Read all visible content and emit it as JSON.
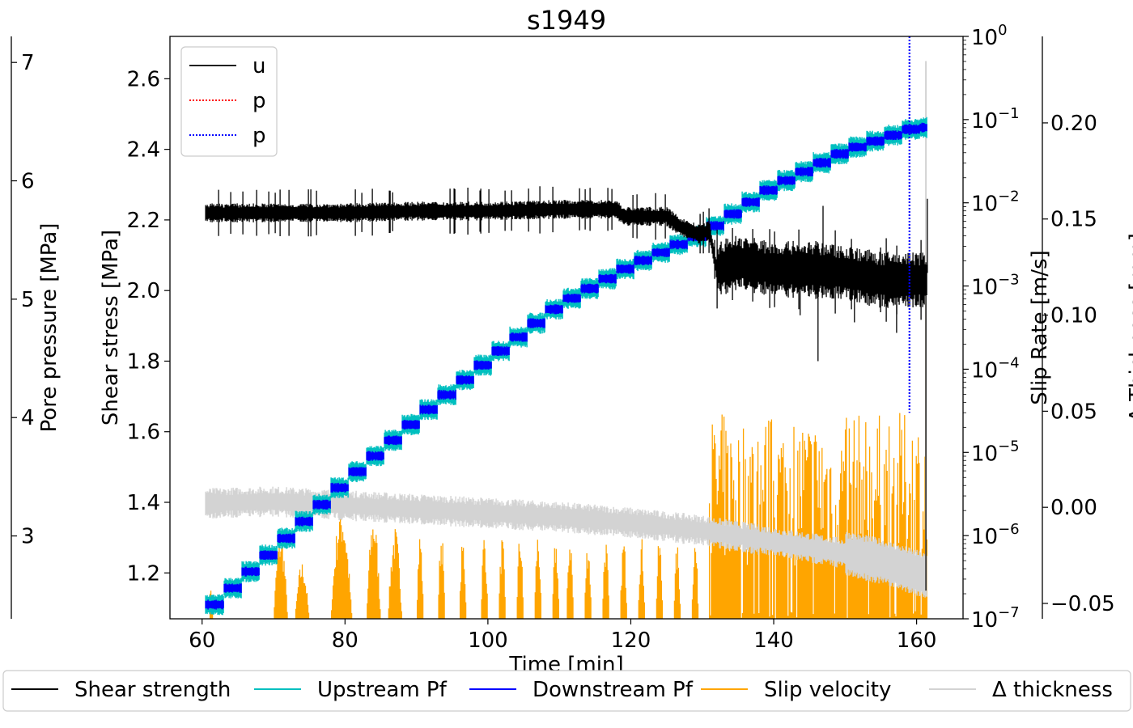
{
  "chart_data": {
    "type": "line",
    "title": "s1949",
    "xlabel": "Time [min]",
    "xlim": [
      55.5,
      166.5
    ],
    "x_ticks": [
      60,
      80,
      100,
      120,
      140,
      160
    ],
    "axes": {
      "shear": {
        "label": "Shear stress [MPa]",
        "position": "left",
        "lim": [
          1.07,
          2.72
        ],
        "ticks": [
          "1.2",
          "1.4",
          "1.6",
          "1.8",
          "2.0",
          "2.2",
          "2.4",
          "2.6"
        ]
      },
      "pore": {
        "label": "Pore pressure [MPa]",
        "position": "left-offset",
        "lim": [
          2.3,
          7.22
        ],
        "ticks": [
          "3",
          "4",
          "5",
          "6",
          "7"
        ]
      },
      "slip": {
        "label": "Slip Rate [m/s]",
        "position": "right",
        "scale": "log",
        "lim": [
          1e-07,
          1
        ],
        "ticks": [
          {
            "value": 1,
            "base": "10",
            "exp": "0"
          },
          {
            "value": 0.1,
            "base": "10",
            "exp": "−1"
          },
          {
            "value": 0.01,
            "base": "10",
            "exp": "−2"
          },
          {
            "value": 0.001,
            "base": "10",
            "exp": "−3"
          },
          {
            "value": 0.0001,
            "base": "10",
            "exp": "−4"
          },
          {
            "value": 1e-05,
            "base": "10",
            "exp": "−5"
          },
          {
            "value": 1e-06,
            "base": "10",
            "exp": "−6"
          },
          {
            "value": 1e-07,
            "base": "10",
            "exp": "−7"
          }
        ]
      },
      "thickness": {
        "label": "Δ Thickness [mm]",
        "position": "right-offset",
        "lim": [
          -0.058,
          0.245
        ],
        "ticks": [
          {
            "value": 0.2,
            "text": "0.20"
          },
          {
            "value": 0.15,
            "text": "0.15"
          },
          {
            "value": 0.1,
            "text": "0.10"
          },
          {
            "value": 0.05,
            "text": "0.05"
          },
          {
            "value": 0.0,
            "text": "0.00"
          },
          {
            "value": -0.05,
            "text": "−0.05"
          }
        ]
      }
    },
    "inner_legend": [
      {
        "label": "u",
        "color": "#000000",
        "style": "solid"
      },
      {
        "label": "p",
        "color": "#ff0000",
        "style": "dotted"
      },
      {
        "label": "p",
        "color": "#0000ff",
        "style": "dotted"
      }
    ],
    "series": [
      {
        "name": "Shear strength",
        "axis": "shear",
        "color": "#000000",
        "x": [
          60.5,
          70,
          80,
          90,
          100,
          110,
          118,
          119,
          125,
          127,
          129.5,
          131,
          132,
          135,
          140,
          145,
          150,
          155,
          160,
          161.5
        ],
        "y": [
          2.22,
          2.22,
          2.22,
          2.225,
          2.225,
          2.23,
          2.23,
          2.21,
          2.21,
          2.18,
          2.16,
          2.17,
          2.06,
          2.08,
          2.06,
          2.06,
          2.05,
          2.03,
          2.03,
          2.03
        ]
      },
      {
        "name": "Upstream Pf",
        "axis": "pore",
        "color": "#00bfbf",
        "x": [
          60.5,
          70,
          80,
          90,
          100,
          110,
          120,
          130,
          140,
          150,
          160,
          161.5
        ],
        "y": [
          2.35,
          2.88,
          3.45,
          3.98,
          4.48,
          4.95,
          5.28,
          5.55,
          5.95,
          6.25,
          6.45,
          6.45
        ]
      },
      {
        "name": "Downstream Pf",
        "axis": "pore",
        "color": "#0000ff",
        "x": [
          60.5,
          70,
          80,
          90,
          100,
          110,
          120,
          130,
          140,
          150,
          160,
          161.5
        ],
        "y": [
          2.35,
          2.88,
          3.45,
          3.98,
          4.48,
          4.95,
          5.28,
          5.55,
          5.95,
          6.25,
          6.45,
          6.45
        ]
      },
      {
        "name": "Slip velocity",
        "axis": "slip",
        "color": "#ffa500",
        "baseline": 1e-07,
        "bursts": [
          {
            "x0": 61,
            "x1": 61.5,
            "peak": 3e-07
          },
          {
            "x0": 70,
            "x1": 72,
            "peak": 1.2e-06
          },
          {
            "x0": 73,
            "x1": 75,
            "peak": 5e-07
          },
          {
            "x0": 78,
            "x1": 81,
            "peak": 2.5e-06
          },
          {
            "x0": 83,
            "x1": 85,
            "peak": 2e-06
          },
          {
            "x0": 86,
            "x1": 88,
            "peak": 1.3e-06
          },
          {
            "x0": 90,
            "x1": 91,
            "peak": 1.2e-06
          },
          {
            "x0": 93,
            "x1": 94,
            "peak": 1.3e-06
          },
          {
            "x0": 96,
            "x1": 97,
            "peak": 1e-06
          },
          {
            "x0": 99,
            "x1": 100,
            "peak": 1.2e-06
          },
          {
            "x0": 101.5,
            "x1": 102.5,
            "peak": 1e-06
          },
          {
            "x0": 104,
            "x1": 105,
            "peak": 1.2e-06
          },
          {
            "x0": 106.5,
            "x1": 107.5,
            "peak": 1.2e-06
          },
          {
            "x0": 109,
            "x1": 110,
            "peak": 1e-06
          },
          {
            "x0": 111,
            "x1": 112,
            "peak": 1.2e-06
          },
          {
            "x0": 113.5,
            "x1": 114.5,
            "peak": 1e-06
          },
          {
            "x0": 116,
            "x1": 117,
            "peak": 1e-06
          },
          {
            "x0": 118.5,
            "x1": 119.5,
            "peak": 1e-06
          },
          {
            "x0": 121,
            "x1": 122,
            "peak": 1e-06
          },
          {
            "x0": 123.5,
            "x1": 124.5,
            "peak": 1e-06
          },
          {
            "x0": 126,
            "x1": 127,
            "peak": 8e-07
          },
          {
            "x0": 128.5,
            "x1": 129.5,
            "peak": 1e-06
          },
          {
            "x0": 131,
            "x1": 161.5,
            "peak": 3e-05
          }
        ]
      },
      {
        "name": "Δ thickness",
        "axis": "thickness",
        "color": "#d3d3d3",
        "x": [
          60.5,
          70,
          80,
          90,
          100,
          110,
          120,
          130,
          140,
          150,
          155,
          160,
          161.5
        ],
        "y": [
          0.002,
          0.003,
          0.001,
          -0.001,
          -0.003,
          -0.005,
          -0.008,
          -0.012,
          -0.018,
          -0.024,
          -0.028,
          -0.034,
          -0.036
        ]
      }
    ],
    "events": [
      {
        "axis": "slip",
        "x": 159,
        "color": "#0000ff",
        "y_top": 1,
        "y_bottom": 3e-05
      }
    ],
    "bottom_legend": [
      "Shear strength",
      "Upstream Pf",
      "Downstream Pf",
      "Slip velocity",
      "Δ thickness"
    ]
  }
}
